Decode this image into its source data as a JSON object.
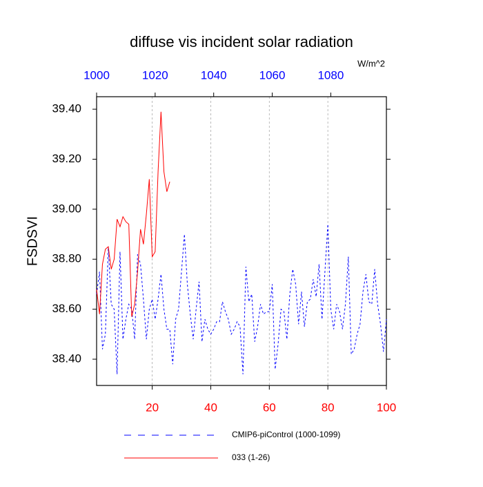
{
  "chart_data": {
    "type": "line",
    "title": "diffuse vis incident solar radiation",
    "units": "W/m^2",
    "ylabel": "FSDSVI",
    "xlim": [
      1,
      100
    ],
    "xticks": [
      20,
      40,
      60,
      80,
      100
    ],
    "xtick_color": "#ff0000",
    "x2lim": [
      1000,
      1099
    ],
    "x2ticks": [
      1000,
      1020,
      1040,
      1060,
      1080
    ],
    "x2tick_color": "#0000ff",
    "ylim": [
      38.295,
      39.45
    ],
    "yticks": [
      {
        "value": 38.4,
        "label": "38.40"
      },
      {
        "value": 38.6,
        "label": "38.60"
      },
      {
        "value": 38.8,
        "label": "38.80"
      },
      {
        "value": 39.0,
        "label": "39.00"
      },
      {
        "value": 39.2,
        "label": "39.20"
      },
      {
        "value": 39.4,
        "label": "39.40"
      }
    ],
    "grid": true,
    "series": [
      {
        "name": "CMIP6-piControl (1000-1099)",
        "color": "#0000ff",
        "dashed": true,
        "x": [
          1,
          2,
          3,
          4,
          5,
          6,
          7,
          8,
          9,
          10,
          11,
          12,
          13,
          14,
          15,
          16,
          17,
          18,
          19,
          20,
          21,
          22,
          23,
          24,
          25,
          26,
          27,
          28,
          29,
          30,
          31,
          32,
          33,
          34,
          35,
          36,
          37,
          38,
          39,
          40,
          41,
          42,
          43,
          44,
          45,
          46,
          47,
          48,
          49,
          50,
          51,
          52,
          53,
          54,
          55,
          56,
          57,
          58,
          59,
          60,
          61,
          62,
          63,
          64,
          65,
          66,
          67,
          68,
          69,
          70,
          71,
          72,
          73,
          74,
          75,
          76,
          77,
          78,
          79,
          80,
          81,
          82,
          83,
          84,
          85,
          86,
          87,
          88,
          89,
          90,
          91,
          92,
          93,
          94,
          95,
          96,
          97,
          98,
          99,
          100
        ],
        "values": [
          38.66,
          38.75,
          38.44,
          38.5,
          38.85,
          38.62,
          38.6,
          38.34,
          38.83,
          38.48,
          38.56,
          38.62,
          38.6,
          38.48,
          38.82,
          38.78,
          38.64,
          38.48,
          38.6,
          38.64,
          38.56,
          38.64,
          38.74,
          38.6,
          38.52,
          38.52,
          38.38,
          38.56,
          38.6,
          38.75,
          38.9,
          38.7,
          38.58,
          38.48,
          38.6,
          38.71,
          38.47,
          38.56,
          38.52,
          38.5,
          38.52,
          38.55,
          38.55,
          38.63,
          38.59,
          38.56,
          38.5,
          38.52,
          38.55,
          38.53,
          38.34,
          38.77,
          38.63,
          38.66,
          38.47,
          38.53,
          38.62,
          38.58,
          38.59,
          38.59,
          38.7,
          38.36,
          38.46,
          38.6,
          38.59,
          38.48,
          38.66,
          38.76,
          38.7,
          38.54,
          38.67,
          38.53,
          38.63,
          38.64,
          38.72,
          38.65,
          38.78,
          38.56,
          38.75,
          38.94,
          38.6,
          38.52,
          38.62,
          38.59,
          38.52,
          38.62,
          38.81,
          38.42,
          38.44,
          38.5,
          38.54,
          38.67,
          38.74,
          38.63,
          38.62,
          38.76,
          38.62,
          38.54,
          38.43,
          38.56
        ]
      },
      {
        "name": "033 (1-26)",
        "color": "#ff0000",
        "dashed": false,
        "x": [
          1,
          2,
          3,
          4,
          5,
          6,
          7,
          8,
          9,
          10,
          11,
          12,
          13,
          14,
          15,
          16,
          17,
          18,
          19,
          20,
          21,
          22,
          23,
          24,
          25,
          26
        ],
        "values": [
          38.68,
          38.58,
          38.78,
          38.84,
          38.85,
          38.76,
          38.8,
          38.96,
          38.93,
          38.97,
          38.95,
          38.94,
          38.57,
          38.62,
          38.75,
          38.92,
          38.86,
          38.98,
          39.12,
          38.81,
          38.83,
          39.15,
          39.39,
          39.15,
          39.07,
          39.11
        ]
      }
    ]
  }
}
